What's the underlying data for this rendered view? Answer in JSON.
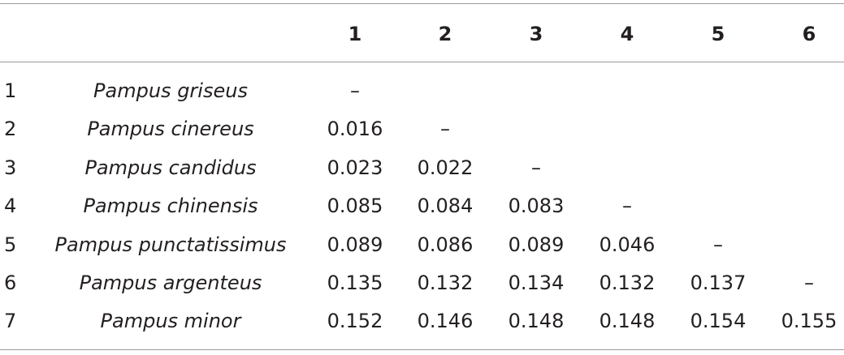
{
  "table": {
    "columns": [
      "1",
      "2",
      "3",
      "4",
      "5",
      "6"
    ],
    "rows": [
      {
        "index": 1,
        "name": "Pampus griseus",
        "values": [
          "–"
        ]
      },
      {
        "index": 2,
        "name": "Pampus cinereus",
        "values": [
          0.016,
          "–"
        ]
      },
      {
        "index": 3,
        "name": "Pampus candidus",
        "values": [
          0.023,
          0.022,
          "–"
        ]
      },
      {
        "index": 4,
        "name": "Pampus chinensis",
        "values": [
          0.085,
          0.084,
          0.083,
          "–"
        ]
      },
      {
        "index": 5,
        "name": "Pampus punctatissimus",
        "values": [
          0.089,
          0.086,
          0.089,
          0.046,
          "–"
        ]
      },
      {
        "index": 6,
        "name": "Pampus argenteus",
        "values": [
          0.135,
          0.132,
          0.134,
          0.132,
          0.137,
          "–"
        ]
      },
      {
        "index": 7,
        "name": "Pampus minor",
        "values": [
          0.152,
          0.146,
          0.148,
          0.148,
          0.154,
          0.155
        ]
      }
    ]
  }
}
